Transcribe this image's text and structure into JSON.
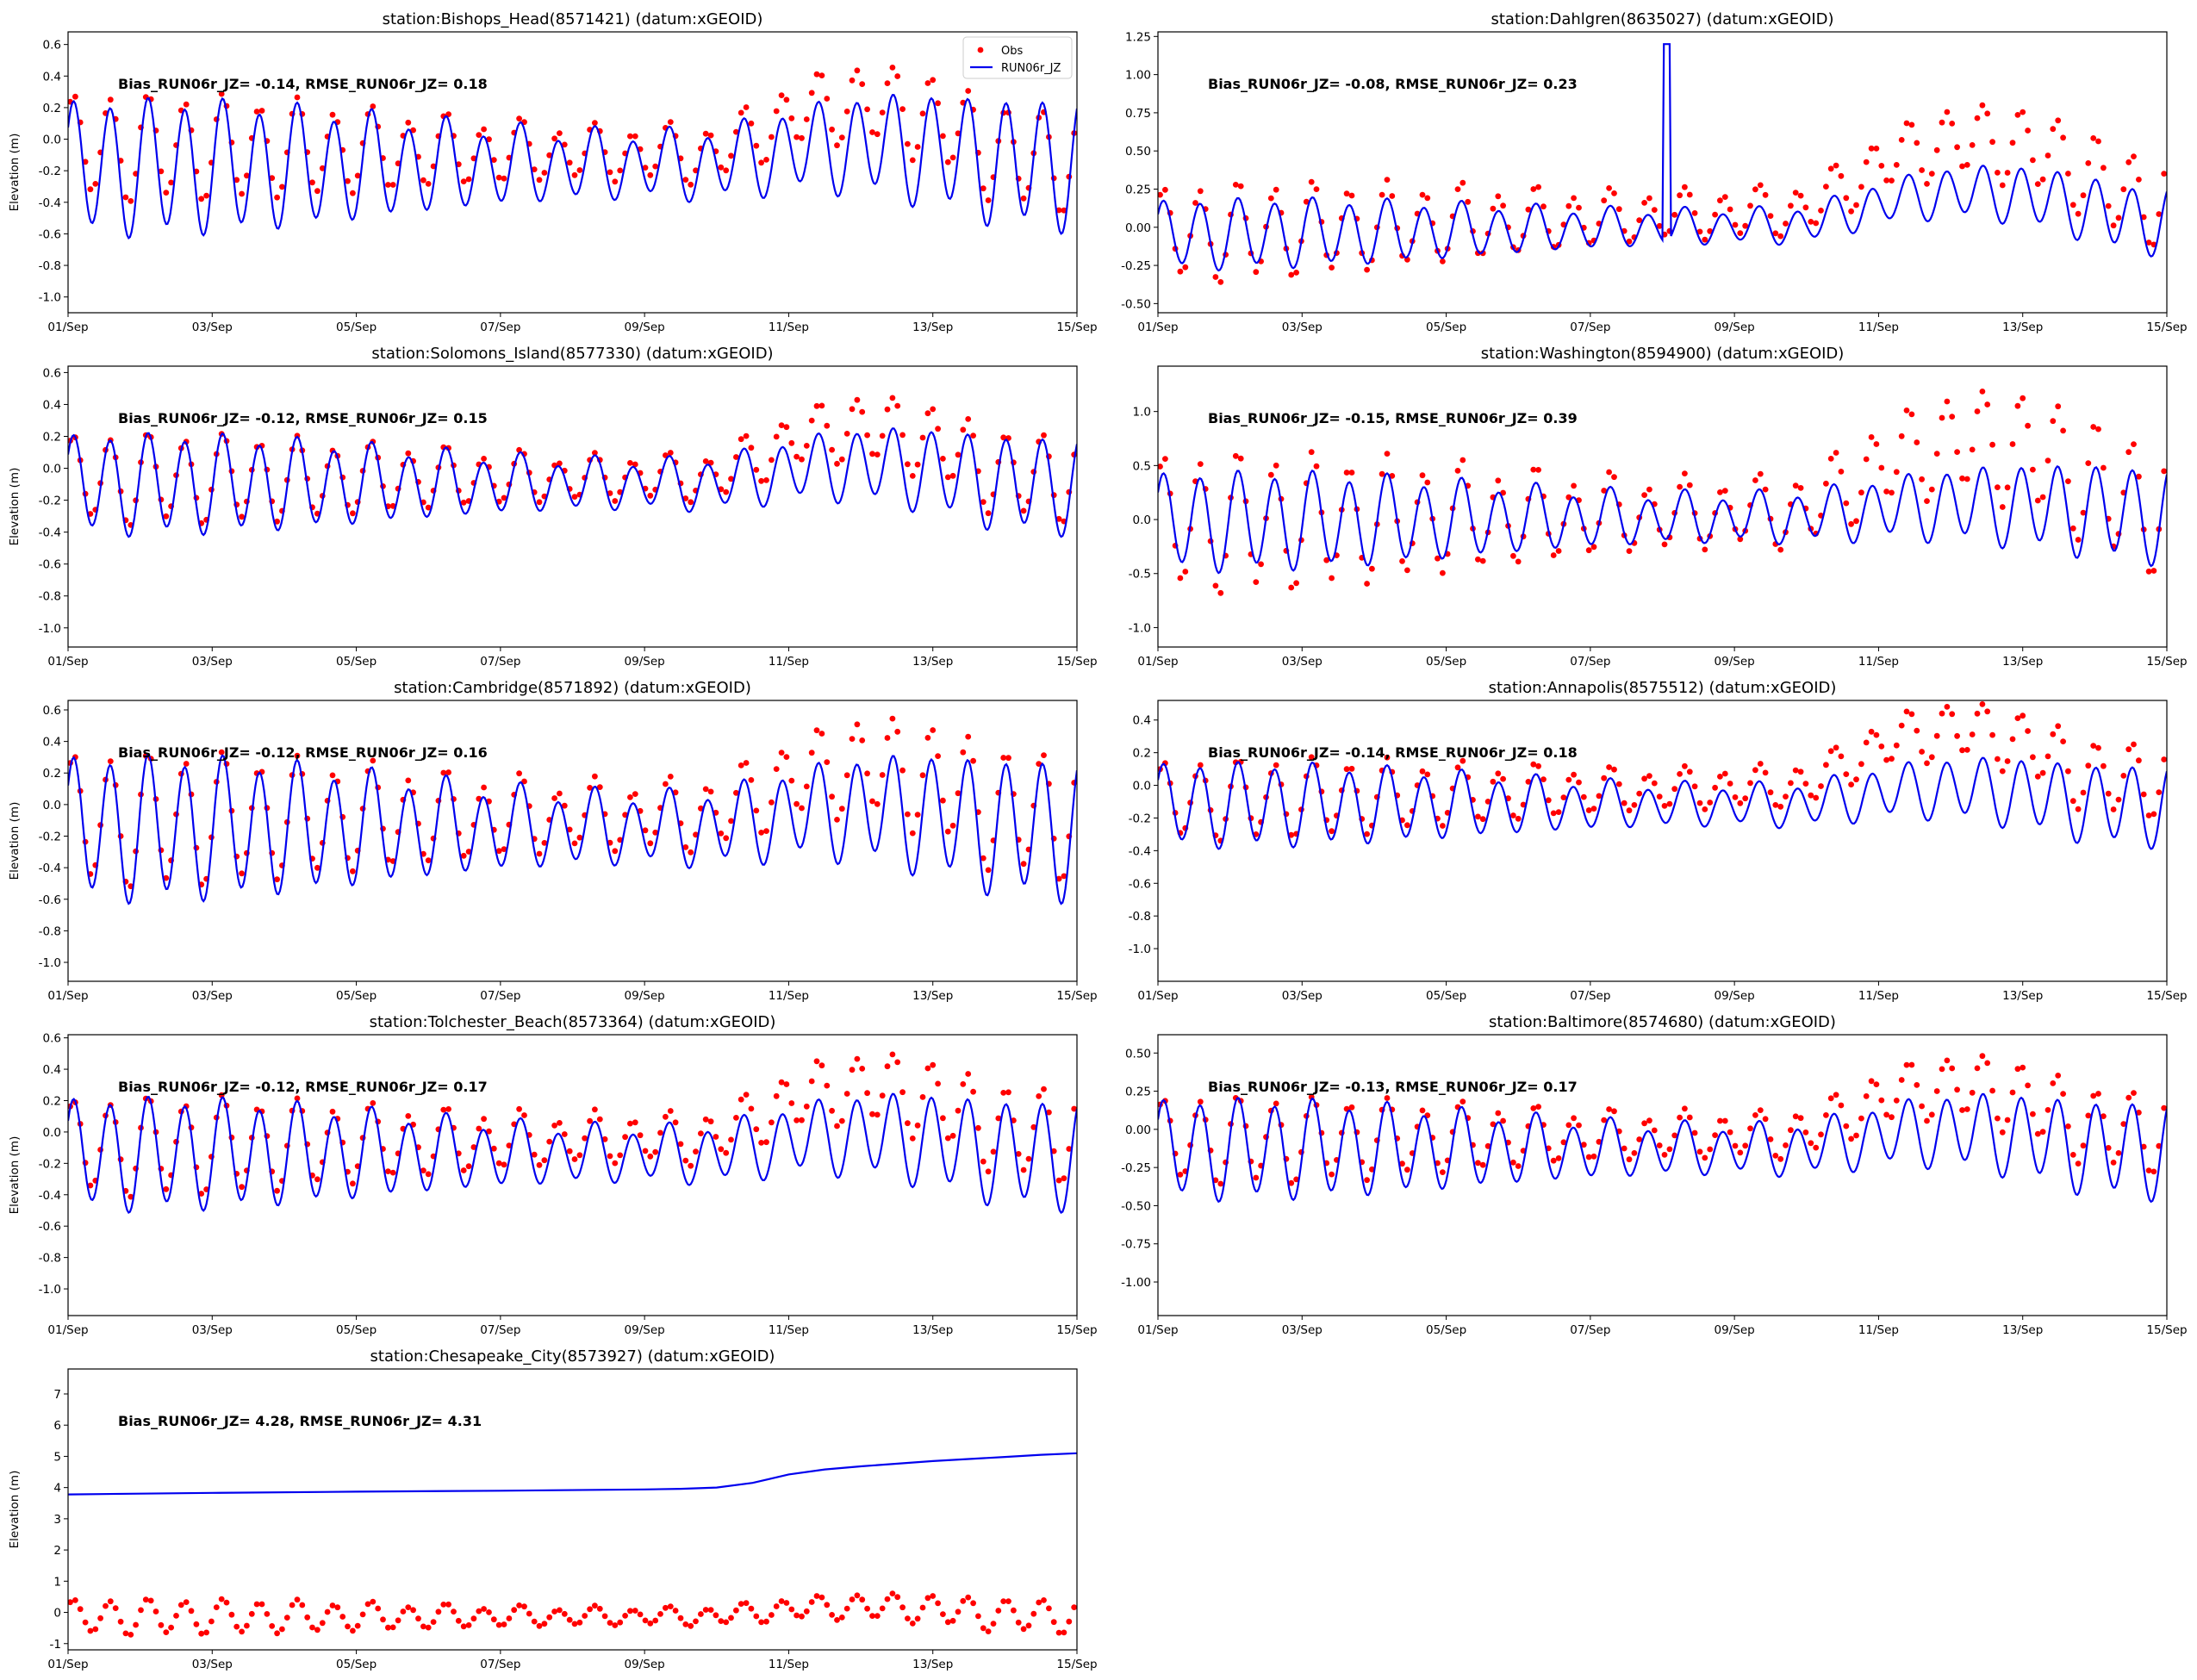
{
  "figure": {
    "x_ticks": [
      "01/Sep",
      "03/Sep",
      "05/Sep",
      "07/Sep",
      "09/Sep",
      "11/Sep",
      "13/Sep",
      "15/Sep"
    ],
    "legend": {
      "obs_label": "Obs",
      "model_label": "RUN06r_JZ",
      "placement": "upper right of first panel"
    },
    "colors": {
      "obs": "#ff0000",
      "model": "#0000ee",
      "axes": "#000000"
    }
  },
  "chart_data": [
    {
      "type": "line",
      "title": "station:Bishops_Head(8571421) (datum:xGEOID)",
      "ylabel": "Elevation (m)",
      "stats": "Bias_RUN06r_JZ= -0.14, RMSE_RUN06r_JZ=  0.18",
      "x_range": [
        "01/Sep",
        "15/Sep"
      ],
      "ylim": [
        -1.1,
        0.68
      ],
      "yticks": [
        "-1.0",
        "-0.8",
        "-0.6",
        "-0.4",
        "-0.2",
        "0.0",
        "0.2",
        "0.4",
        "0.6"
      ],
      "ytick_values": [
        -1.0,
        -0.8,
        -0.6,
        -0.4,
        -0.2,
        0.0,
        0.2,
        0.4,
        0.6
      ],
      "legend": true,
      "series": [
        {
          "name": "Obs",
          "style": "dots",
          "color": "#ff0000",
          "mean_start": -0.05,
          "mean_end": -0.12,
          "amplitude": 0.24,
          "surge": [
            {
              "start": 9.0,
              "end": 13.0,
              "peak": 0.33
            }
          ]
        },
        {
          "name": "RUN06r_JZ",
          "style": "line",
          "color": "#0000ee",
          "mean_start": -0.18,
          "mean_end": -0.15,
          "amplitude": 0.3,
          "surge": [
            {
              "start": 9.0,
              "end": 13.0,
              "peak": 0.12
            }
          ]
        }
      ]
    },
    {
      "type": "line",
      "title": "station:Dahlgren(8635027) (datum:xGEOID)",
      "ylabel": "",
      "stats": "Bias_RUN06r_JZ= -0.08, RMSE_RUN06r_JZ=  0.23",
      "x_range": [
        "01/Sep",
        "15/Sep"
      ],
      "ylim": [
        -0.56,
        1.28
      ],
      "yticks": [
        "-0.50",
        "-0.25",
        "0.00",
        "0.25",
        "0.50",
        "0.75",
        "1.00",
        "1.25"
      ],
      "ytick_values": [
        -0.5,
        -0.25,
        0.0,
        0.25,
        0.5,
        0.75,
        1.0,
        1.25
      ],
      "legend": false,
      "series": [
        {
          "name": "Obs",
          "style": "dots",
          "color": "#ff0000",
          "mean_start": -0.05,
          "mean_end": 0.2,
          "amplitude": 0.22,
          "surge": [
            {
              "start": 9.0,
              "end": 13.5,
              "peak": 0.42
            }
          ]
        },
        {
          "name": "RUN06r_JZ",
          "style": "line",
          "color": "#0000ee",
          "mean_start": -0.05,
          "mean_end": 0.05,
          "amplitude": 0.16,
          "surge": [
            {
              "start": 9.0,
              "end": 13.5,
              "peak": 0.2
            }
          ],
          "spike": {
            "x": 7.05,
            "y": 1.2
          }
        }
      ]
    },
    {
      "type": "line",
      "title": "station:Solomons_Island(8577330) (datum:xGEOID)",
      "ylabel": "Elevation (m)",
      "stats": "Bias_RUN06r_JZ= -0.12, RMSE_RUN06r_JZ=  0.15",
      "x_range": [
        "01/Sep",
        "15/Sep"
      ],
      "ylim": [
        -1.12,
        0.64
      ],
      "yticks": [
        "-1.0",
        "-0.8",
        "-0.6",
        "-0.4",
        "-0.2",
        "0.0",
        "0.2",
        "0.4",
        "0.6"
      ],
      "ytick_values": [
        -1.0,
        -0.8,
        -0.6,
        -0.4,
        -0.2,
        0.0,
        0.2,
        0.4,
        0.6
      ],
      "legend": false,
      "series": [
        {
          "name": "Obs",
          "style": "dots",
          "color": "#ff0000",
          "mean_start": -0.07,
          "mean_end": -0.05,
          "amplitude": 0.2,
          "surge": [
            {
              "start": 9.0,
              "end": 13.0,
              "peak": 0.3
            }
          ]
        },
        {
          "name": "RUN06r_JZ",
          "style": "line",
          "color": "#0000ee",
          "mean_start": -0.1,
          "mean_end": -0.1,
          "amplitude": 0.22,
          "surge": [
            {
              "start": 9.0,
              "end": 13.0,
              "peak": 0.12
            }
          ]
        }
      ]
    },
    {
      "type": "line",
      "title": "station:Washington(8594900) (datum:xGEOID)",
      "ylabel": "",
      "stats": "Bias_RUN06r_JZ= -0.15, RMSE_RUN06r_JZ=  0.39",
      "x_range": [
        "01/Sep",
        "15/Sep"
      ],
      "ylim": [
        -1.18,
        1.42
      ],
      "yticks": [
        "-1.0",
        "-0.5",
        "0.0",
        "0.5",
        "1.0"
      ],
      "ytick_values": [
        -1.0,
        -0.5,
        0.0,
        0.5,
        1.0
      ],
      "legend": false,
      "series": [
        {
          "name": "Obs",
          "style": "dots",
          "color": "#ff0000",
          "mean_start": -0.05,
          "mean_end": 0.15,
          "amplitude": 0.45,
          "surge": [
            {
              "start": 9.0,
              "end": 13.5,
              "peak": 0.6
            }
          ]
        },
        {
          "name": "RUN06r_JZ",
          "style": "line",
          "color": "#0000ee",
          "mean_start": -0.02,
          "mean_end": 0.05,
          "amplitude": 0.32,
          "surge": [
            {
              "start": 9.0,
              "end": 13.5,
              "peak": 0.1
            }
          ]
        }
      ]
    },
    {
      "type": "line",
      "title": "station:Cambridge(8571892) (datum:xGEOID)",
      "ylabel": "Elevation (m)",
      "stats": "Bias_RUN06r_JZ= -0.12, RMSE_RUN06r_JZ=  0.16",
      "x_range": [
        "01/Sep",
        "15/Sep"
      ],
      "ylim": [
        -1.12,
        0.66
      ],
      "yticks": [
        "-1.0",
        "-0.8",
        "-0.6",
        "-0.4",
        "-0.2",
        "0.0",
        "0.2",
        "0.4",
        "0.6"
      ],
      "ytick_values": [
        -1.0,
        -0.8,
        -0.6,
        -0.4,
        -0.2,
        0.0,
        0.2,
        0.4,
        0.6
      ],
      "legend": false,
      "series": [
        {
          "name": "Obs",
          "style": "dots",
          "color": "#ff0000",
          "mean_start": -0.1,
          "mean_end": -0.05,
          "amplitude": 0.3,
          "surge": [
            {
              "start": 9.0,
              "end": 13.0,
              "peak": 0.3
            }
          ]
        },
        {
          "name": "RUN06r_JZ",
          "style": "line",
          "color": "#0000ee",
          "mean_start": -0.15,
          "mean_end": -0.15,
          "amplitude": 0.32,
          "surge": [
            {
              "start": 9.0,
              "end": 13.0,
              "peak": 0.12
            }
          ]
        }
      ]
    },
    {
      "type": "line",
      "title": "station:Annapolis(8575512) (datum:xGEOID)",
      "ylabel": "",
      "stats": "Bias_RUN06r_JZ= -0.14, RMSE_RUN06r_JZ=  0.18",
      "x_range": [
        "01/Sep",
        "15/Sep"
      ],
      "ylim": [
        -1.2,
        0.52
      ],
      "yticks": [
        "-1.0",
        "-0.8",
        "-0.6",
        "-0.4",
        "-0.2",
        "0.0",
        "0.2",
        "0.4"
      ],
      "ytick_values": [
        -1.0,
        -0.8,
        -0.6,
        -0.4,
        -0.2,
        0.0,
        0.2,
        0.4
      ],
      "legend": false,
      "series": [
        {
          "name": "Obs",
          "style": "dots",
          "color": "#ff0000",
          "mean_start": -0.1,
          "mean_end": 0.05,
          "amplitude": 0.17,
          "surge": [
            {
              "start": 9.0,
              "end": 13.0,
              "peak": 0.32
            }
          ]
        },
        {
          "name": "RUN06r_JZ",
          "style": "line",
          "color": "#0000ee",
          "mean_start": -0.12,
          "mean_end": -0.12,
          "amplitude": 0.18,
          "surge": [
            {
              "start": 9.0,
              "end": 13.0,
              "peak": 0.1
            }
          ]
        }
      ]
    },
    {
      "type": "line",
      "title": "station:Tolchester_Beach(8573364) (datum:xGEOID)",
      "ylabel": "Elevation (m)",
      "stats": "Bias_RUN06r_JZ= -0.12, RMSE_RUN06r_JZ=  0.17",
      "x_range": [
        "01/Sep",
        "15/Sep"
      ],
      "ylim": [
        -1.17,
        0.62
      ],
      "yticks": [
        "-1.0",
        "-0.8",
        "-0.6",
        "-0.4",
        "-0.2",
        "0.0",
        "0.2",
        "0.4",
        "0.6"
      ],
      "ytick_values": [
        -1.0,
        -0.8,
        -0.6,
        -0.4,
        -0.2,
        0.0,
        0.2,
        0.4,
        0.6
      ],
      "legend": false,
      "series": [
        {
          "name": "Obs",
          "style": "dots",
          "color": "#ff0000",
          "mean_start": -0.1,
          "mean_end": 0.0,
          "amplitude": 0.22,
          "surge": [
            {
              "start": 9.0,
              "end": 13.0,
              "peak": 0.3
            }
          ]
        },
        {
          "name": "RUN06r_JZ",
          "style": "line",
          "color": "#0000ee",
          "mean_start": -0.14,
          "mean_end": -0.14,
          "amplitude": 0.25,
          "surge": [
            {
              "start": 9.0,
              "end": 13.0,
              "peak": 0.12
            }
          ]
        }
      ]
    },
    {
      "type": "line",
      "title": "station:Baltimore(8574680) (datum:xGEOID)",
      "ylabel": "",
      "stats": "Bias_RUN06r_JZ= -0.13, RMSE_RUN06r_JZ=  0.17",
      "x_range": [
        "01/Sep",
        "15/Sep"
      ],
      "ylim": [
        -1.22,
        0.62
      ],
      "yticks": [
        "-1.00",
        "-0.75",
        "-0.50",
        "-0.25",
        "0.00",
        "0.25",
        "0.50"
      ],
      "ytick_values": [
        -1.0,
        -0.75,
        -0.5,
        -0.25,
        0.0,
        0.25,
        0.5
      ],
      "legend": false,
      "series": [
        {
          "name": "Obs",
          "style": "dots",
          "color": "#ff0000",
          "mean_start": -0.08,
          "mean_end": 0.0,
          "amplitude": 0.2,
          "surge": [
            {
              "start": 9.0,
              "end": 13.0,
              "peak": 0.3
            }
          ]
        },
        {
          "name": "RUN06r_JZ",
          "style": "line",
          "color": "#0000ee",
          "mean_start": -0.13,
          "mean_end": -0.13,
          "amplitude": 0.23,
          "surge": [
            {
              "start": 9.0,
              "end": 13.0,
              "peak": 0.12
            }
          ]
        }
      ]
    },
    {
      "type": "line",
      "title": "station:Chesapeake_City(8573927) (datum:xGEOID)",
      "ylabel": "Elevation (m)",
      "stats": "Bias_RUN06r_JZ=  4.28, RMSE_RUN06r_JZ=  4.31",
      "x_range": [
        "01/Sep",
        "15/Sep"
      ],
      "ylim": [
        -1.2,
        7.8
      ],
      "yticks": [
        "-1",
        "0",
        "1",
        "2",
        "3",
        "4",
        "5",
        "6",
        "7"
      ],
      "ytick_values": [
        -1,
        0,
        1,
        2,
        3,
        4,
        5,
        6,
        7
      ],
      "legend": false,
      "series": [
        {
          "name": "Obs",
          "style": "dots",
          "color": "#ff0000",
          "mean_start": -0.15,
          "mean_end": -0.1,
          "amplitude": 0.4,
          "surge": [
            {
              "start": 9.0,
              "end": 13.0,
              "peak": 0.3
            }
          ]
        },
        {
          "name": "RUN06r_JZ",
          "style": "smooth",
          "color": "#0000ee",
          "points": [
            [
              0,
              3.78
            ],
            [
              2,
              3.83
            ],
            [
              4,
              3.87
            ],
            [
              6,
              3.9
            ],
            [
              8,
              3.94
            ],
            [
              8.5,
              3.96
            ],
            [
              9,
              4.0
            ],
            [
              9.5,
              4.15
            ],
            [
              10,
              4.42
            ],
            [
              10.5,
              4.58
            ],
            [
              11,
              4.68
            ],
            [
              12,
              4.85
            ],
            [
              13,
              4.98
            ],
            [
              13.5,
              5.05
            ],
            [
              14,
              5.1
            ],
            [
              14.5,
              5.13
            ],
            [
              15,
              5.15
            ]
          ]
        }
      ]
    }
  ]
}
